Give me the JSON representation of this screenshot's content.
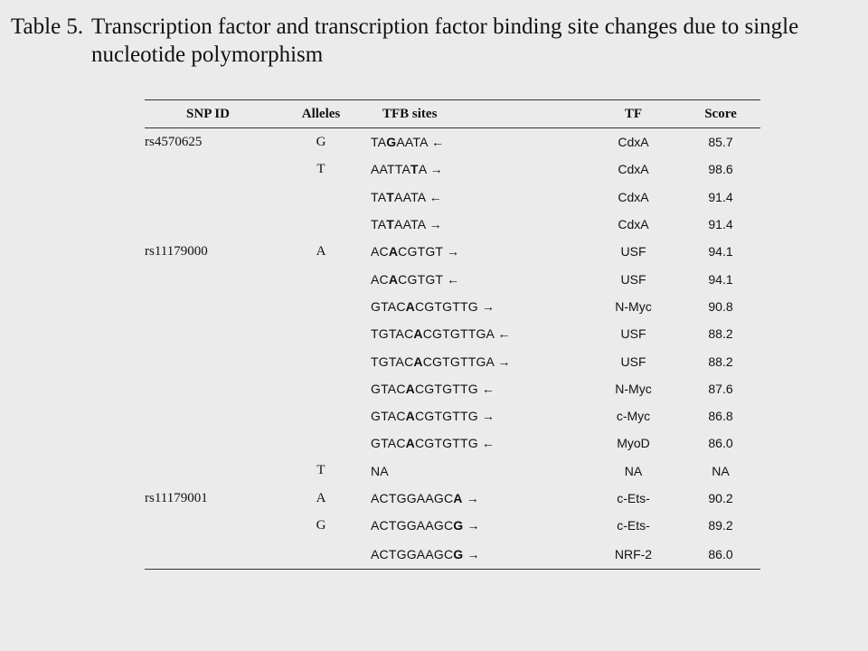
{
  "title": {
    "number": "Table 5.",
    "line1": "Transcription factor and transcription factor binding site changes due to single",
    "line2": "nucleotide polymorphism"
  },
  "table": {
    "headers": [
      "SNP ID",
      "Alleles",
      "TFB sites",
      "TF",
      "Score"
    ],
    "rows": [
      {
        "snp": "rs4570625",
        "allele": "G",
        "pre": "TA",
        "hl": "G",
        "post": "AATA",
        "dir": "←",
        "tf": "CdxA",
        "score": "85.7"
      },
      {
        "snp": "",
        "allele": "T",
        "pre": "AATTA",
        "hl": "T",
        "post": "A",
        "dir": "→",
        "tf": "CdxA",
        "score": "98.6"
      },
      {
        "snp": "",
        "allele": "",
        "pre": "TA",
        "hl": "T",
        "post": "AATA",
        "dir": "←",
        "tf": "CdxA",
        "score": "91.4"
      },
      {
        "snp": "",
        "allele": "",
        "pre": "TA",
        "hl": "T",
        "post": "AATA",
        "dir": "→",
        "tf": "CdxA",
        "score": "91.4"
      },
      {
        "snp": "rs11179000",
        "allele": "A",
        "pre": "AC",
        "hl": "A",
        "post": "CGTGT",
        "dir": "→",
        "tf": "USF",
        "score": "94.1"
      },
      {
        "snp": "",
        "allele": "",
        "pre": "AC",
        "hl": "A",
        "post": "CGTGT",
        "dir": "←",
        "tf": "USF",
        "score": "94.1"
      },
      {
        "snp": "",
        "allele": "",
        "pre": "GTAC",
        "hl": "A",
        "post": "CGTGTTG",
        "dir": "→",
        "tf": "N-Myc",
        "score": "90.8"
      },
      {
        "snp": "",
        "allele": "",
        "pre": "TGTAC",
        "hl": "A",
        "post": "CGTGTTGA",
        "dir": "←",
        "tf": "USF",
        "score": "88.2"
      },
      {
        "snp": "",
        "allele": "",
        "pre": "TGTAC",
        "hl": "A",
        "post": "CGTGTTGA",
        "dir": "→",
        "tf": "USF",
        "score": "88.2"
      },
      {
        "snp": "",
        "allele": "",
        "pre": "GTAC",
        "hl": "A",
        "post": "CGTGTTG",
        "dir": "←",
        "tf": "N-Myc",
        "score": "87.6"
      },
      {
        "snp": "",
        "allele": "",
        "pre": "GTAC",
        "hl": "A",
        "post": "CGTGTTG",
        "dir": "→",
        "tf": "c-Myc",
        "score": "86.8"
      },
      {
        "snp": "",
        "allele": "",
        "pre": "GTAC",
        "hl": "A",
        "post": "CGTGTTG",
        "dir": "←",
        "tf": "MyoD",
        "score": "86.0"
      },
      {
        "snp": "",
        "allele": "T",
        "pre": "NA",
        "hl": "",
        "post": "",
        "dir": "",
        "tf": "NA",
        "score": "NA"
      },
      {
        "snp": "rs11179001",
        "allele": "A",
        "pre": "ACTGGAAGC",
        "hl": "A",
        "post": "",
        "dir": "→",
        "tf": "c-Ets-",
        "score": "90.2"
      },
      {
        "snp": "",
        "allele": "G",
        "pre": "ACTGGAAGC",
        "hl": "G",
        "post": "",
        "dir": "→",
        "tf": "c-Ets-",
        "score": "89.2"
      },
      {
        "snp": "",
        "allele": "",
        "pre": "ACTGGAAGC",
        "hl": "G",
        "post": "",
        "dir": "→",
        "tf": "NRF-2",
        "score": "86.0"
      }
    ]
  }
}
